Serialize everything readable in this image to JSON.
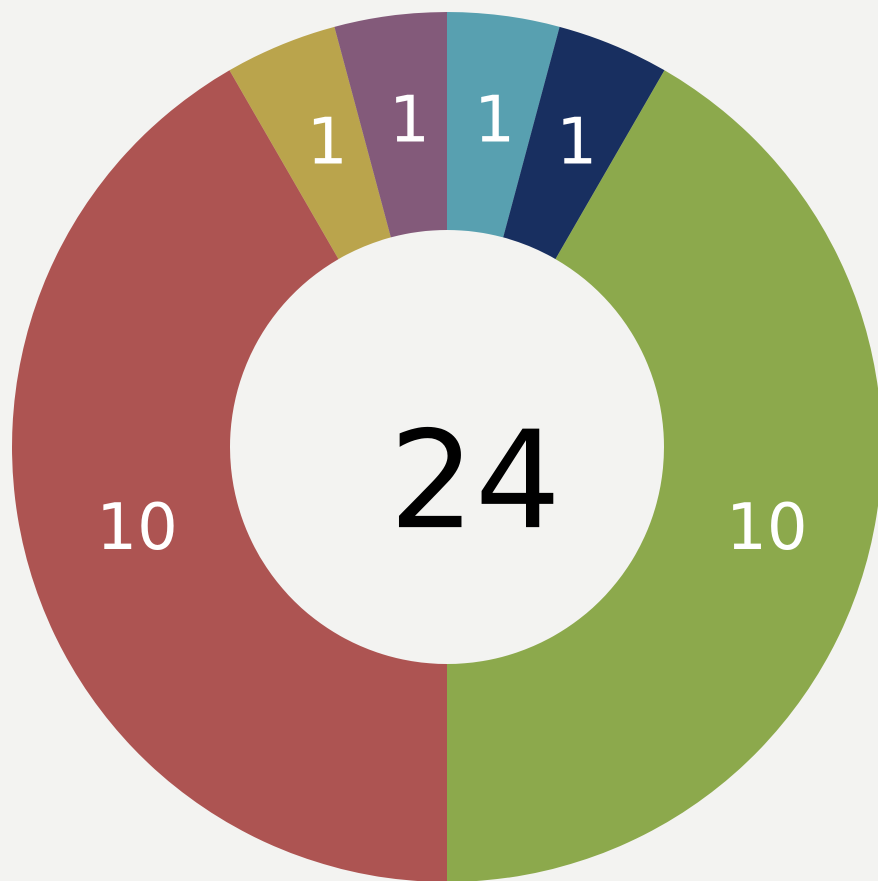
{
  "chart_data": {
    "type": "donut",
    "values": [
      1,
      1,
      10,
      10,
      1,
      1
    ],
    "colors": [
      "#58a0b0",
      "#182f60",
      "#8ca94c",
      "#ad5452",
      "#baa44c",
      "#835a7a"
    ],
    "total": 24
  }
}
